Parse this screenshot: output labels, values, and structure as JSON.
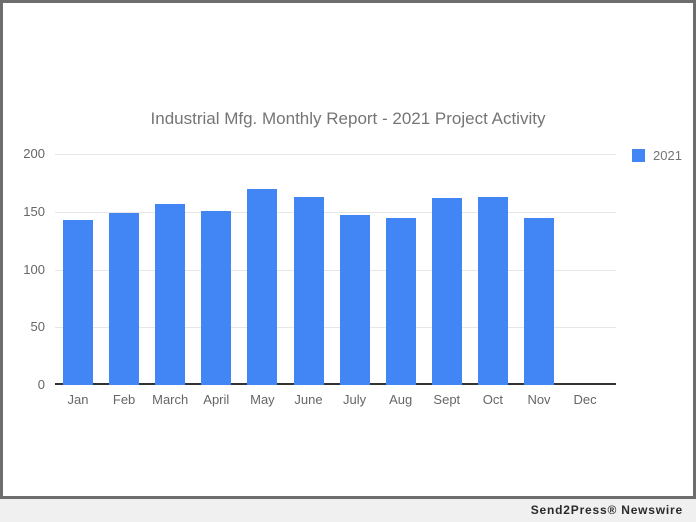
{
  "footer": {
    "branding": "Send2Press® Newswire"
  },
  "chart_data": {
    "type": "bar",
    "title": "Industrial Mfg. Monthly Report - 2021 Project Activity",
    "categories": [
      "Jan",
      "Feb",
      "March",
      "April",
      "May",
      "June",
      "July",
      "Aug",
      "Sept",
      "Oct",
      "Nov",
      "Dec"
    ],
    "series": [
      {
        "name": "2021",
        "values": [
          143,
          149,
          157,
          151,
          170,
          163,
          147,
          145,
          162,
          163,
          145,
          0
        ]
      }
    ],
    "xlabel": "",
    "ylabel": "",
    "ylim": [
      0,
      200
    ],
    "yticks": [
      0,
      50,
      100,
      150,
      200
    ],
    "grid": true,
    "legend_position": "right-top",
    "colors": {
      "bar": "#4285f4",
      "title": "#757575",
      "axis_labels": "#666666",
      "gridline": "#e6e6e6",
      "baseline": "#333333"
    }
  }
}
